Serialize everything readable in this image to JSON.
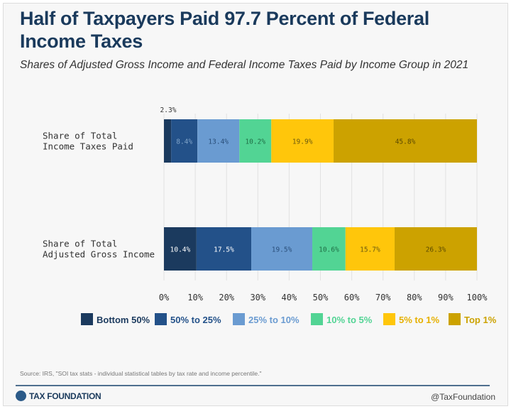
{
  "title": "Half of Taxpayers Paid 97.7 Percent of Federal Income Taxes",
  "subtitle": "Shares of Adjusted Gross Income and Federal Income Taxes Paid by Income Group in 2021",
  "source": "Source: IRS, \"SOI tax stats - individual statistical tables by tax rate and income percentile.\"",
  "footer": {
    "logo_text": "TAX FOUNDATION",
    "handle": "@TaxFoundation"
  },
  "chart_data": {
    "type": "bar",
    "orientation": "horizontal",
    "stacked": true,
    "categories": [
      "Share of Total Income Taxes Paid",
      "Share of Total Adjusted Gross Income"
    ],
    "category_lines": [
      [
        "Share of Total",
        "Income Taxes Paid"
      ],
      [
        "Share of Total",
        "Adjusted Gross Income"
      ]
    ],
    "series": [
      {
        "name": "Bottom 50%",
        "color": "#1b3a5e",
        "values": [
          2.3,
          10.4
        ],
        "labels": [
          "2.3%",
          "10.4%"
        ]
      },
      {
        "name": "50% to 25%",
        "color": "#235189",
        "values": [
          8.4,
          17.5
        ],
        "labels": [
          "8.4%",
          "17.5%"
        ]
      },
      {
        "name": "25% to 10%",
        "color": "#6a9bd1",
        "values": [
          13.4,
          19.5
        ],
        "labels": [
          "13.4%",
          "19.5%"
        ]
      },
      {
        "name": "10% to 5%",
        "color": "#52d494",
        "values": [
          10.2,
          10.6
        ],
        "labels": [
          "10.2%",
          "10.6%"
        ]
      },
      {
        "name": "5% to 1%",
        "color": "#ffc60b",
        "values": [
          19.9,
          15.7
        ],
        "labels": [
          "19.9%",
          "15.7%"
        ]
      },
      {
        "name": "Top 1%",
        "color": "#cca200",
        "values": [
          45.8,
          26.3
        ],
        "labels": [
          "45.8%",
          "26.3%"
        ]
      }
    ],
    "xlim": [
      0,
      100
    ],
    "xticks": [
      "0%",
      "10%",
      "20%",
      "30%",
      "40%",
      "50%",
      "60%",
      "70%",
      "80%",
      "90%",
      "100%"
    ],
    "grid": true,
    "legend": "bottom"
  }
}
